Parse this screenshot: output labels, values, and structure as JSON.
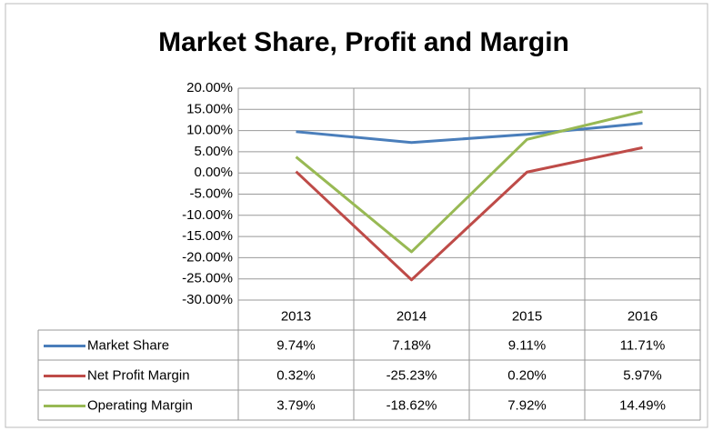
{
  "chart_data": {
    "type": "line",
    "title": "Market Share, Profit and Margin",
    "categories": [
      "2013",
      "2014",
      "2015",
      "2016"
    ],
    "series": [
      {
        "name": "Market Share",
        "color": "#4a7ebb",
        "values": [
          9.74,
          7.18,
          9.11,
          11.71
        ],
        "value_labels": [
          "9.74%",
          "7.18%",
          "9.11%",
          "11.71%"
        ]
      },
      {
        "name": "Net Profit Margin",
        "color": "#be4b48",
        "values": [
          0.32,
          -25.23,
          0.2,
          5.97
        ],
        "value_labels": [
          "0.32%",
          "-25.23%",
          "0.20%",
          "5.97%"
        ]
      },
      {
        "name": "Operating Margin",
        "color": "#98b954",
        "values": [
          3.79,
          -18.62,
          7.92,
          14.49
        ],
        "value_labels": [
          "3.79%",
          "-18.62%",
          "7.92%",
          "14.49%"
        ]
      }
    ],
    "ylim": [
      -30,
      20
    ],
    "yticks": [
      {
        "value": 20,
        "label": "20.00%"
      },
      {
        "value": 15,
        "label": "15.00%"
      },
      {
        "value": 10,
        "label": "10.00%"
      },
      {
        "value": 5,
        "label": "5.00%"
      },
      {
        "value": 0,
        "label": "0.00%"
      },
      {
        "value": -5,
        "label": "-5.00%"
      },
      {
        "value": -10,
        "label": "-10.00%"
      },
      {
        "value": -15,
        "label": "-15.00%"
      },
      {
        "value": -20,
        "label": "-20.00%"
      },
      {
        "value": -25,
        "label": "-25.00%"
      },
      {
        "value": -30,
        "label": "-30.00%"
      }
    ],
    "grid": true
  }
}
